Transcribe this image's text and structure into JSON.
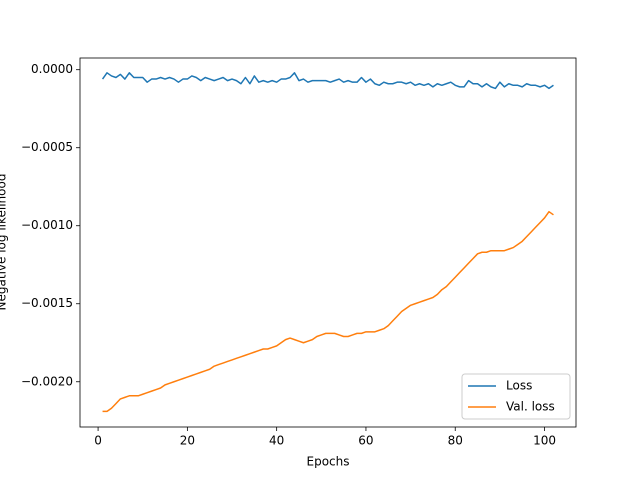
{
  "chart_data": {
    "type": "line",
    "xlabel": "Epochs",
    "ylabel": "Negative log likelihood",
    "x": [
      1,
      2,
      3,
      4,
      5,
      6,
      7,
      8,
      9,
      10,
      11,
      12,
      13,
      14,
      15,
      16,
      17,
      18,
      19,
      20,
      21,
      22,
      23,
      24,
      25,
      26,
      27,
      28,
      29,
      30,
      31,
      32,
      33,
      34,
      35,
      36,
      37,
      38,
      39,
      40,
      41,
      42,
      43,
      44,
      45,
      46,
      47,
      48,
      49,
      50,
      51,
      52,
      53,
      54,
      55,
      56,
      57,
      58,
      59,
      60,
      61,
      62,
      63,
      64,
      65,
      66,
      67,
      68,
      69,
      70,
      71,
      72,
      73,
      74,
      75,
      76,
      77,
      78,
      79,
      80,
      81,
      82,
      83,
      84,
      85,
      86,
      87,
      88,
      89,
      90,
      91,
      92,
      93,
      94,
      95,
      96,
      97,
      98,
      99,
      100,
      101,
      102
    ],
    "series": [
      {
        "name": "Loss",
        "color": "#1f77b4",
        "values": [
          -6e-05,
          -2e-05,
          -4e-05,
          -5e-05,
          -3e-05,
          -6e-05,
          -2e-05,
          -5e-05,
          -5e-05,
          -5e-05,
          -8e-05,
          -6e-05,
          -6e-05,
          -5e-05,
          -6e-05,
          -5e-05,
          -6e-05,
          -8e-05,
          -6e-05,
          -6e-05,
          -4e-05,
          -5e-05,
          -7e-05,
          -5e-05,
          -6e-05,
          -7e-05,
          -6e-05,
          -5e-05,
          -7e-05,
          -6e-05,
          -7e-05,
          -9e-05,
          -5e-05,
          -9e-05,
          -4e-05,
          -8e-05,
          -7e-05,
          -8e-05,
          -7e-05,
          -8e-05,
          -6e-05,
          -6e-05,
          -5e-05,
          -2e-05,
          -7e-05,
          -6e-05,
          -8e-05,
          -7e-05,
          -7e-05,
          -7e-05,
          -7e-05,
          -8e-05,
          -7e-05,
          -6e-05,
          -8e-05,
          -7e-05,
          -8e-05,
          -8e-05,
          -5e-05,
          -8e-05,
          -6e-05,
          -9e-05,
          -0.0001,
          -8e-05,
          -9e-05,
          -9e-05,
          -8e-05,
          -8e-05,
          -9e-05,
          -8e-05,
          -0.0001,
          -9e-05,
          -0.0001,
          -9e-05,
          -0.00011,
          -9e-05,
          -0.0001,
          -9e-05,
          -8e-05,
          -0.0001,
          -0.00011,
          -0.00011,
          -7e-05,
          -9e-05,
          -9e-05,
          -0.00011,
          -9e-05,
          -0.00011,
          -0.00012,
          -8e-05,
          -0.00011,
          -9e-05,
          -0.0001,
          -0.0001,
          -0.00011,
          -9e-05,
          -0.0001,
          -0.0001,
          -0.00011,
          -0.0001,
          -0.00012,
          -0.0001
        ]
      },
      {
        "name": "Val. loss",
        "color": "#ff7f0e",
        "values": [
          -0.00219,
          -0.00219,
          -0.00217,
          -0.00214,
          -0.00211,
          -0.0021,
          -0.00209,
          -0.00209,
          -0.00209,
          -0.00208,
          -0.00207,
          -0.00206,
          -0.00205,
          -0.00204,
          -0.00202,
          -0.00201,
          -0.002,
          -0.00199,
          -0.00198,
          -0.00197,
          -0.00196,
          -0.00195,
          -0.00194,
          -0.00193,
          -0.00192,
          -0.0019,
          -0.00189,
          -0.00188,
          -0.00187,
          -0.00186,
          -0.00185,
          -0.00184,
          -0.00183,
          -0.00182,
          -0.00181,
          -0.0018,
          -0.00179,
          -0.00179,
          -0.00178,
          -0.00177,
          -0.00175,
          -0.00173,
          -0.00172,
          -0.00173,
          -0.00174,
          -0.00175,
          -0.00174,
          -0.00173,
          -0.00171,
          -0.0017,
          -0.00169,
          -0.00169,
          -0.00169,
          -0.0017,
          -0.00171,
          -0.00171,
          -0.0017,
          -0.00169,
          -0.00169,
          -0.00168,
          -0.00168,
          -0.00168,
          -0.00167,
          -0.00166,
          -0.00164,
          -0.00161,
          -0.00158,
          -0.00155,
          -0.00153,
          -0.00151,
          -0.0015,
          -0.00149,
          -0.00148,
          -0.00147,
          -0.00146,
          -0.00144,
          -0.00141,
          -0.00139,
          -0.00136,
          -0.00133,
          -0.0013,
          -0.00127,
          -0.00124,
          -0.00121,
          -0.00118,
          -0.00117,
          -0.00117,
          -0.00116,
          -0.00116,
          -0.00116,
          -0.00116,
          -0.00115,
          -0.00114,
          -0.00112,
          -0.0011,
          -0.00107,
          -0.00104,
          -0.00101,
          -0.00098,
          -0.00095,
          -0.00091,
          -0.00093
        ]
      }
    ],
    "xlim": [
      -4.05,
      107.05
    ],
    "ylim": [
      -0.00229,
      7.5e-05
    ],
    "xticks": [
      0,
      20,
      40,
      60,
      80,
      100
    ],
    "yticks": [
      {
        "value": 0,
        "label": "0.0000"
      },
      {
        "value": -0.0005,
        "label": "−0.0005"
      },
      {
        "value": -0.001,
        "label": "−0.0010"
      },
      {
        "value": -0.0015,
        "label": "−0.0015"
      },
      {
        "value": -0.002,
        "label": "−0.0020"
      }
    ],
    "grid": false,
    "legend": "lower right"
  }
}
